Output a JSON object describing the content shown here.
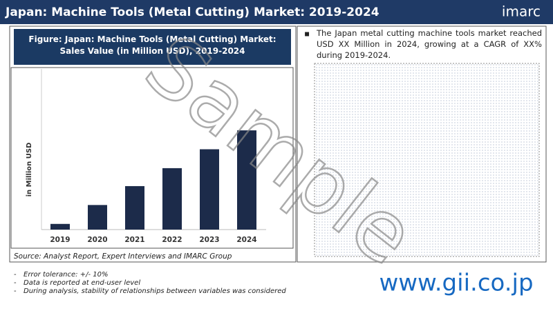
{
  "header": {
    "title": "Japan: Machine Tools (Metal Cutting) Market: 2019-2024",
    "logo": "imarc"
  },
  "chart_data": {
    "type": "bar",
    "title": "Figure: Japan: Machine Tools (Metal Cutting) Market: Sales Value (in Million USD), 2019-2024",
    "y_label": "in Million USD",
    "categories": [
      "2019",
      "2020",
      "2021",
      "2022",
      "2023",
      "2024"
    ],
    "values": [
      6,
      26,
      46,
      65,
      85,
      105
    ],
    "color": "#1c2b4a",
    "ylim": [
      0,
      170
    ],
    "source": "Source: Analyst Report, Expert Interviews and IMARC Group"
  },
  "summary": "The Japan metal cutting machine tools market reached USD XX Million in 2024, growing at a CAGR of XX% during 2019-2024.",
  "notes": [
    "Error tolerance: +/- 10%",
    "Data is reported at end-user level",
    "During analysis, stability of relationships between variables was considered"
  ],
  "watermark": "Sample",
  "website": "www.gii.co.jp"
}
